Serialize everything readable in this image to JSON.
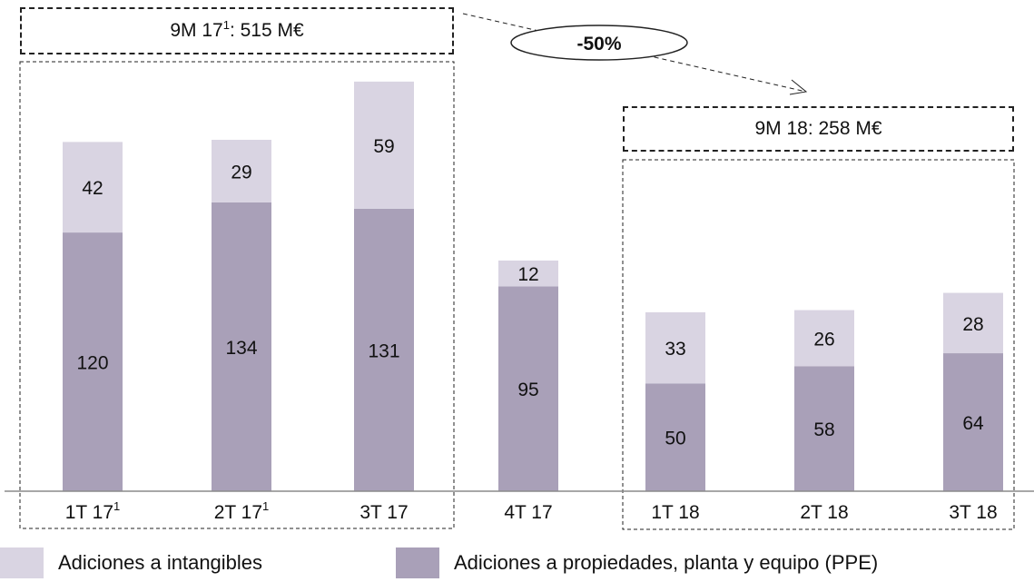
{
  "chart_data": {
    "type": "bar",
    "stacked": true,
    "categories": [
      "1T 17",
      "2T 17",
      "3T 17",
      "4T 17",
      "1T 18",
      "2T 18",
      "3T 18"
    ],
    "category_superscripts": [
      "1",
      "1",
      "",
      "",
      "",
      "",
      ""
    ],
    "series": [
      {
        "name": "Adiciones a propiedades, planta y equipo (PPE)",
        "values": [
          120,
          134,
          131,
          95,
          50,
          58,
          64
        ]
      },
      {
        "name": "Adiciones a intangibles",
        "values": [
          42,
          29,
          59,
          12,
          33,
          26,
          28
        ]
      }
    ],
    "ylim": [
      0,
      195
    ],
    "grid": false,
    "legend_position": "bottom",
    "annotations": {
      "summary_2017": "9M 17",
      "summary_2017_sup": "1",
      "summary_2017_value": ": 515 M€",
      "summary_2018": "9M 18: 258 M€",
      "change": "-50%"
    }
  },
  "colors": {
    "ppe": "#a9a0b8",
    "intangibles": "#d9d4e2",
    "text": "#111111",
    "axis": "#8a8a8a"
  }
}
